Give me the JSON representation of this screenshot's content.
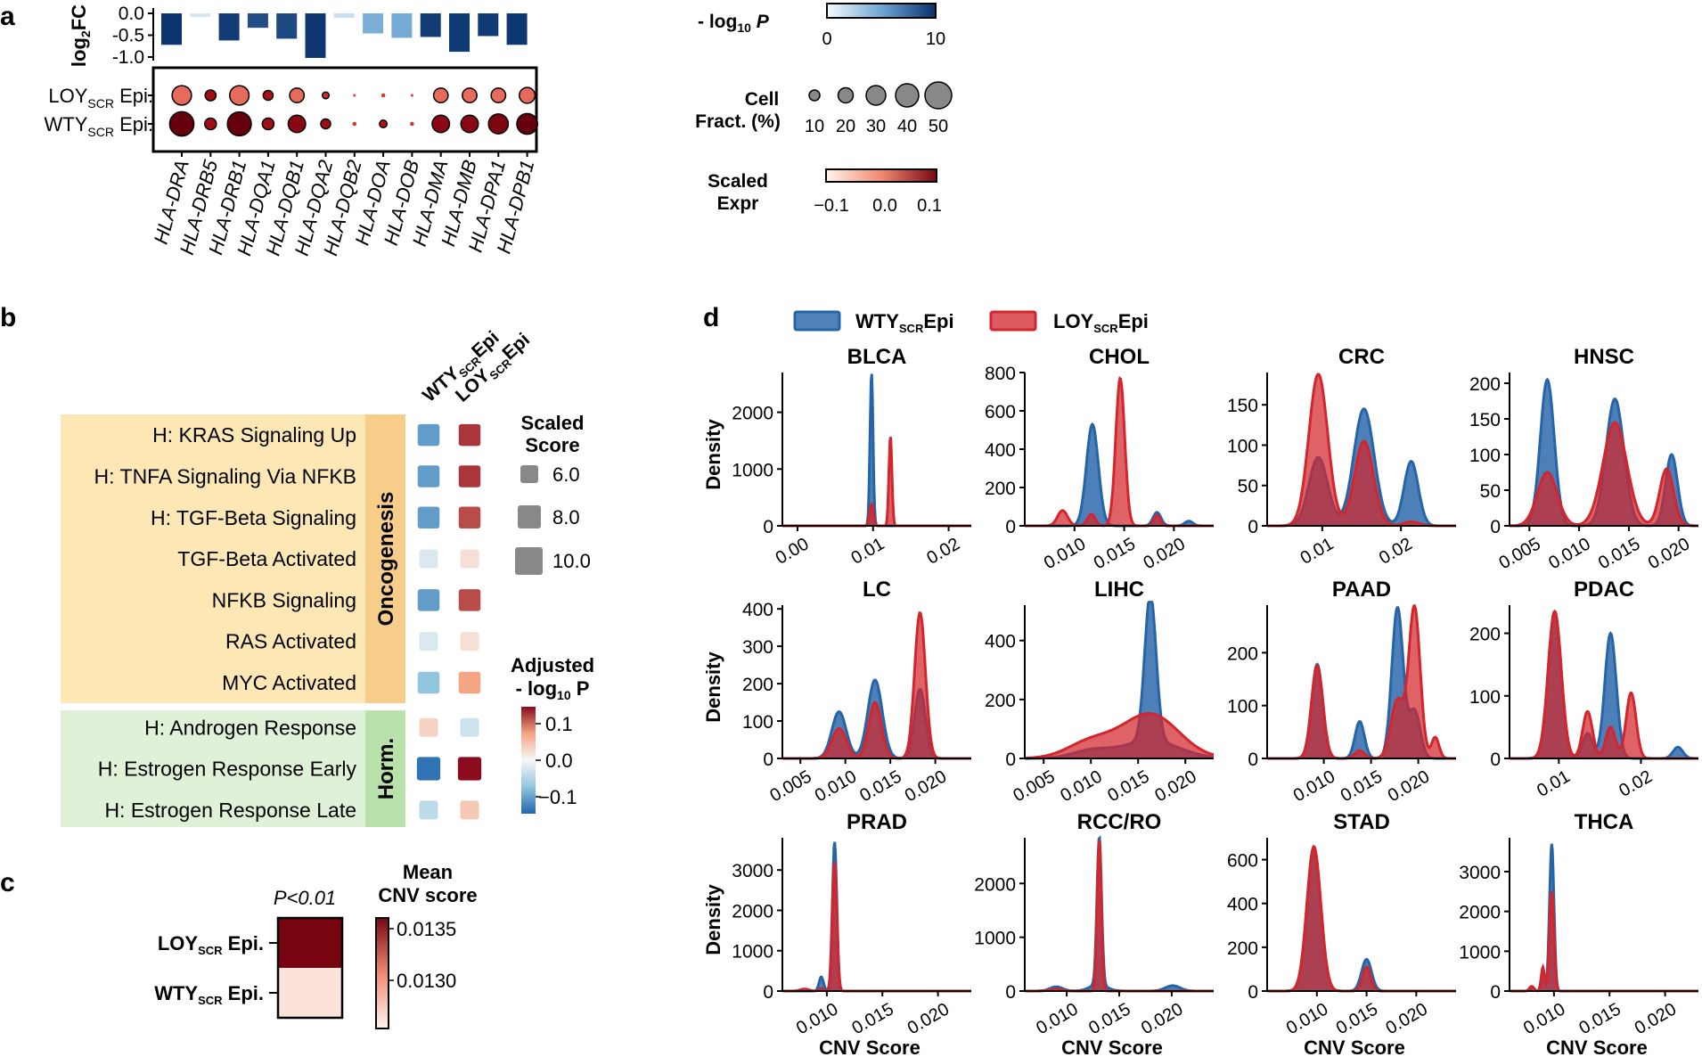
{
  "panel_labels": [
    "a",
    "b",
    "c",
    "d"
  ],
  "colors": {
    "blue": "#2664a8",
    "red": "#d2262c",
    "dark_red": "#7a0614",
    "orange_panel": "#f7cd8a",
    "orange_box": "#fde7b5",
    "green_panel": "#b9e2aa",
    "green_box": "#dff1d6",
    "gray_dot": "#888888"
  },
  "chart_data": [
    {
      "id": "a-bars",
      "type": "bar",
      "ylabel": "log2FC",
      "ylim": [
        -1.0,
        0.0
      ],
      "yticks": [
        "0.0",
        "-0.5",
        "-1.0"
      ],
      "categories": [
        "HLA-DRA",
        "HLA-DRB5",
        "HLA-DRB1",
        "HLA-DQA1",
        "HLA-DQB1",
        "HLA-DQA2",
        "HLA-DQB2",
        "HLA-DOA",
        "HLA-DOB",
        "HLA-DMA",
        "HLA-DMB",
        "HLA-DPA1",
        "HLA-DPB1"
      ],
      "values": [
        -0.72,
        -0.08,
        -0.62,
        -0.33,
        -0.58,
        -1.02,
        -0.1,
        -0.46,
        -0.56,
        -0.54,
        -0.88,
        -0.52,
        -0.72
      ],
      "neg_log10_p": [
        9.8,
        1.0,
        9.5,
        8.8,
        9.0,
        9.7,
        1.5,
        4.5,
        4.8,
        9.5,
        9.6,
        9.6,
        9.7
      ]
    },
    {
      "id": "a-dots",
      "type": "scatter",
      "rows": [
        "LOYSCR Epi.",
        "WTYSCR Epi."
      ],
      "categories": [
        "HLA-DRA",
        "HLA-DRB5",
        "HLA-DRB1",
        "HLA-DQA1",
        "HLA-DQB1",
        "HLA-DQA2",
        "HLA-DQB2",
        "HLA-DOA",
        "HLA-DOB",
        "HLA-DMA",
        "HLA-DMB",
        "HLA-DPA1",
        "HLA-DPB1"
      ],
      "cell_fraction": [
        [
          38,
          10,
          38,
          8,
          20,
          3,
          1,
          2,
          1,
          20,
          20,
          20,
          24
        ],
        [
          62,
          12,
          60,
          12,
          30,
          8,
          2,
          4,
          2,
          30,
          30,
          40,
          44
        ]
      ],
      "scaled_expr": [
        [
          -0.02,
          0.08,
          -0.02,
          0.07,
          -0.02,
          0.03,
          0.0,
          0.02,
          0.0,
          -0.02,
          -0.02,
          -0.02,
          -0.02
        ],
        [
          0.13,
          0.08,
          0.13,
          0.08,
          0.1,
          0.08,
          0.02,
          0.06,
          0.02,
          0.1,
          0.1,
          0.11,
          0.13
        ]
      ]
    },
    {
      "id": "b-heatmap",
      "type": "heatmap",
      "columns": [
        "WTYSCR Epi",
        "LOYSCR Epi"
      ],
      "rows": [
        "H: KRAS Signaling Up",
        "H: TNFA Signaling Via NFKB",
        "H: TGF-Beta Signaling",
        "TGF-Beta Activated",
        "NFKB Signaling",
        "RAS Activated",
        "MYC Activated",
        "H: Androgen Response",
        "H: Estrogen Response Early",
        "H: Estrogen Response Late"
      ],
      "groups": [
        {
          "name": "Oncogenesis",
          "start": 0,
          "end": 6
        },
        {
          "name": "Horm.",
          "start": 7,
          "end": 9
        }
      ],
      "values": [
        [
          -0.1,
          0.12
        ],
        [
          -0.1,
          0.12
        ],
        [
          -0.1,
          0.11
        ],
        [
          -0.02,
          0.02
        ],
        [
          -0.1,
          0.11
        ],
        [
          -0.02,
          0.02
        ],
        [
          -0.07,
          0.07
        ],
        [
          0.03,
          -0.03
        ],
        [
          -0.13,
          0.14
        ],
        [
          -0.04,
          0.04
        ]
      ],
      "scaled_score": [
        [
          9.0,
          9.0
        ],
        [
          9.0,
          9.0
        ],
        [
          9.0,
          9.0
        ],
        [
          8.0,
          8.0
        ],
        [
          9.0,
          9.0
        ],
        [
          8.0,
          8.0
        ],
        [
          9.0,
          9.0
        ],
        [
          8.0,
          8.0
        ],
        [
          9.5,
          9.5
        ],
        [
          8.0,
          8.0
        ]
      ]
    },
    {
      "id": "c-heatmap",
      "type": "heatmap",
      "title": "P<0.01",
      "rows": [
        "LOYSCR Epi.",
        "WTYSCR Epi."
      ],
      "values": [
        0.0136,
        0.0128
      ],
      "colorbar_label": "Mean CNV score",
      "colorbar_ticks": [
        "0.0135",
        "0.0130"
      ],
      "colorbar_range": [
        0.01275,
        0.01365
      ]
    },
    {
      "id": "d-density",
      "type": "area",
      "series_names": [
        "WTYSCREpi",
        "LOYSCREpi"
      ],
      "xlabel": "CNV Score",
      "ylabel": "Density",
      "panels": [
        {
          "title": "BLCA",
          "xlim": [
            -0.002,
            0.023
          ],
          "ylim": [
            0,
            2700
          ],
          "xticks": [
            0.0,
            0.01,
            0.02
          ],
          "xtick_labels": [
            "0.00",
            "0.01",
            "0.02"
          ],
          "yticks": [
            0,
            1000,
            2000
          ],
          "blue": [
            [
              0.0098,
              2700,
              0.0002
            ]
          ],
          "red": [
            [
              0.0098,
              380,
              0.00025
            ],
            [
              0.0123,
              1580,
              0.0002
            ]
          ]
        },
        {
          "title": "CHOL",
          "xlim": [
            0.005,
            0.024
          ],
          "ylim": [
            0,
            800
          ],
          "xticks": [
            0.01,
            0.015,
            0.02
          ],
          "xtick_labels": [
            "0.010",
            "0.015",
            "0.020"
          ],
          "yticks": [
            0,
            200,
            400,
            600,
            800
          ],
          "blue": [
            [
              0.0118,
              530,
              0.0006
            ],
            [
              0.0183,
              70,
              0.0004
            ],
            [
              0.0215,
              25,
              0.0004
            ]
          ],
          "red": [
            [
              0.0088,
              80,
              0.0005
            ],
            [
              0.0117,
              60,
              0.0004
            ],
            [
              0.0146,
              770,
              0.00045
            ],
            [
              0.0183,
              55,
              0.0003
            ]
          ]
        },
        {
          "title": "CRC",
          "xlim": [
            0.003,
            0.027
          ],
          "ylim": [
            0,
            190
          ],
          "xticks": [
            0.01,
            0.02
          ],
          "xtick_labels": [
            "0.01",
            "0.02"
          ],
          "yticks": [
            0,
            50,
            100,
            150
          ],
          "blue": [
            [
              0.0095,
              85,
              0.0012
            ],
            [
              0.0153,
              145,
              0.0013
            ],
            [
              0.0213,
              80,
              0.0009
            ]
          ],
          "red": [
            [
              0.0095,
              188,
              0.0012
            ],
            [
              0.0153,
              105,
              0.0012
            ],
            [
              0.0213,
              5,
              0.001
            ]
          ]
        },
        {
          "title": "HNSC",
          "xlim": [
            0.003,
            0.022
          ],
          "ylim": [
            0,
            215
          ],
          "xticks": [
            0.005,
            0.01,
            0.015,
            0.02
          ],
          "xtick_labels": [
            "0.005",
            "0.010",
            "0.015",
            "0.020"
          ],
          "yticks": [
            0,
            50,
            100,
            150,
            200
          ],
          "blue": [
            [
              0.0068,
              205,
              0.0007
            ],
            [
              0.0136,
              178,
              0.0009
            ],
            [
              0.0193,
              100,
              0.0006
            ]
          ],
          "red": [
            [
              0.0068,
              75,
              0.001
            ],
            [
              0.0136,
              145,
              0.0012
            ],
            [
              0.0188,
              80,
              0.0007
            ]
          ]
        },
        {
          "title": "LC",
          "xlim": [
            0.003,
            0.024
          ],
          "ylim": [
            0,
            410
          ],
          "xticks": [
            0.005,
            0.01,
            0.015,
            0.02
          ],
          "xtick_labels": [
            "0.005",
            "0.010",
            "0.015",
            "0.020"
          ],
          "yticks": [
            0,
            100,
            200,
            300,
            400
          ],
          "blue": [
            [
              0.0093,
              125,
              0.0008
            ],
            [
              0.0133,
              210,
              0.0008
            ],
            [
              0.0183,
              185,
              0.0006
            ]
          ],
          "red": [
            [
              0.0093,
              80,
              0.0008
            ],
            [
              0.0133,
              150,
              0.0007
            ],
            [
              0.0183,
              390,
              0.0006
            ]
          ]
        },
        {
          "title": "LIHC",
          "xlim": [
            0.003,
            0.023
          ],
          "ylim": [
            0,
            520
          ],
          "xticks": [
            0.005,
            0.01,
            0.015,
            0.02
          ],
          "xtick_labels": [
            "0.005",
            "0.010",
            "0.015",
            "0.020"
          ],
          "yticks": [
            0,
            200,
            400
          ],
          "blue": [
            [
              0.0163,
              500,
              0.0006
            ],
            [
              0.0163,
              60,
              0.003
            ],
            [
              0.01,
              25,
              0.002
            ]
          ],
          "red": [
            [
              0.0163,
              150,
              0.003
            ],
            [
              0.01,
              55,
              0.0025
            ]
          ]
        },
        {
          "title": "PAAD",
          "xlim": [
            0.004,
            0.024
          ],
          "ylim": [
            0,
            290
          ],
          "xticks": [
            0.01,
            0.015,
            0.02
          ],
          "xtick_labels": [
            "0.010",
            "0.015",
            "0.020"
          ],
          "yticks": [
            0,
            100,
            200
          ],
          "blue": [
            [
              0.0093,
              178,
              0.0006
            ],
            [
              0.0138,
              70,
              0.0005
            ],
            [
              0.0178,
              285,
              0.0006
            ],
            [
              0.0196,
              90,
              0.0006
            ]
          ],
          "red": [
            [
              0.0093,
              175,
              0.0006
            ],
            [
              0.0138,
              15,
              0.0005
            ],
            [
              0.0178,
              110,
              0.0007
            ],
            [
              0.0196,
              285,
              0.0006
            ],
            [
              0.0218,
              40,
              0.0004
            ]
          ]
        },
        {
          "title": "PDAC",
          "xlim": [
            0.004,
            0.027
          ],
          "ylim": [
            0,
            245
          ],
          "xticks": [
            0.01,
            0.02
          ],
          "xtick_labels": [
            "0.01",
            "0.02"
          ],
          "yticks": [
            0,
            100,
            200
          ],
          "blue": [
            [
              0.0095,
              235,
              0.0008
            ],
            [
              0.0135,
              40,
              0.0006
            ],
            [
              0.0163,
              200,
              0.0007
            ],
            [
              0.0245,
              18,
              0.0006
            ]
          ],
          "red": [
            [
              0.0095,
              235,
              0.0008
            ],
            [
              0.0135,
              75,
              0.0006
            ],
            [
              0.0163,
              50,
              0.0006
            ],
            [
              0.0188,
              105,
              0.0006
            ]
          ]
        },
        {
          "title": "PRAD",
          "xlim": [
            0.006,
            0.023
          ],
          "ylim": [
            0,
            3800
          ],
          "xticks": [
            0.01,
            0.015,
            0.02
          ],
          "xtick_labels": [
            "0.010",
            "0.015",
            "0.020"
          ],
          "yticks": [
            0,
            1000,
            2000,
            3000
          ],
          "blue": [
            [
              0.0095,
              350,
              0.0002
            ],
            [
              0.0107,
              3700,
              0.0002
            ]
          ],
          "red": [
            [
              0.0095,
              60,
              0.0002
            ],
            [
              0.0107,
              3200,
              0.0002
            ],
            [
              0.008,
              50,
              0.0004
            ]
          ]
        },
        {
          "title": "RCC/RO",
          "xlim": [
            0.006,
            0.024
          ],
          "ylim": [
            0,
            2850
          ],
          "xticks": [
            0.01,
            0.015,
            0.02
          ],
          "xtick_labels": [
            "0.010",
            "0.015",
            "0.020"
          ],
          "yticks": [
            0,
            1000,
            2000
          ],
          "blue": [
            [
              0.0131,
              2750,
              0.00022
            ],
            [
              0.009,
              80,
              0.0006
            ],
            [
              0.0201,
              100,
              0.0007
            ],
            [
              0.013,
              120,
              0.0008
            ]
          ],
          "red": [
            [
              0.0131,
              2800,
              0.0002
            ],
            [
              0.009,
              40,
              0.0006
            ]
          ]
        },
        {
          "title": "STAD",
          "xlim": [
            0.005,
            0.024
          ],
          "ylim": [
            0,
            700
          ],
          "xticks": [
            0.01,
            0.015,
            0.02
          ],
          "xtick_labels": [
            "0.010",
            "0.015",
            "0.020"
          ],
          "yticks": [
            0,
            200,
            400,
            600
          ],
          "blue": [
            [
              0.0097,
              650,
              0.0007
            ],
            [
              0.015,
              145,
              0.0005
            ]
          ],
          "red": [
            [
              0.0097,
              660,
              0.0007
            ],
            [
              0.015,
              110,
              0.0004
            ]
          ]
        },
        {
          "title": "THCA",
          "xlim": [
            0.006,
            0.023
          ],
          "ylim": [
            0,
            3850
          ],
          "xticks": [
            0.01,
            0.015,
            0.02
          ],
          "xtick_labels": [
            "0.010",
            "0.015",
            "0.020"
          ],
          "yticks": [
            0,
            1000,
            2000,
            3000
          ],
          "blue": [
            [
              0.0098,
              3700,
              0.0002
            ],
            [
              0.009,
              500,
              0.00015
            ],
            [
              0.008,
              100,
              0.0002
            ]
          ],
          "red": [
            [
              0.0098,
              2500,
              0.0002
            ],
            [
              0.009,
              600,
              0.00015
            ],
            [
              0.008,
              120,
              0.0002
            ]
          ]
        }
      ]
    }
  ],
  "legend_a": {
    "pval_title_pre": "- log",
    "pval_title_sub": "10",
    "pval_title_post": " P",
    "pval_ticks": [
      "0",
      "10"
    ],
    "cellfrac_title_1": "Cell",
    "cellfrac_title_2": "Fract. (%)",
    "cellfrac_ticks": [
      "10",
      "20",
      "30",
      "40",
      "50"
    ],
    "expr_title_1": "Scaled",
    "expr_title_2": "Expr",
    "expr_ticks": [
      "−0.1",
      "0.0",
      "0.1"
    ],
    "ylabel_pre": "log",
    "ylabel_sub": "2",
    "ylabel_post": "FC",
    "row_labels": [
      {
        "pre": "LOY",
        "sub": "SCR",
        "post": " Epi."
      },
      {
        "pre": "WTY",
        "sub": "SCR",
        "post": " Epi."
      }
    ]
  },
  "legend_b": {
    "col_labels": [
      {
        "pre": "WTY",
        "sub": "SCR",
        "post": "Epi"
      },
      {
        "pre": "LOY",
        "sub": "SCR",
        "post": "Epi"
      }
    ],
    "score_title_1": "Scaled",
    "score_title_2": "Score",
    "score_ticks": [
      "6.0",
      "8.0",
      "10.0"
    ],
    "p_title_1": "Adjusted",
    "p_title_2_pre": "- log",
    "p_title_2_sub": "10",
    "p_title_2_post": " P",
    "p_ticks": [
      "0.1",
      "0.0",
      "−0.1"
    ]
  },
  "legend_c": {
    "row_labels": [
      {
        "pre": "LOY",
        "sub": "SCR",
        "post": " Epi."
      },
      {
        "pre": "WTY",
        "sub": "SCR",
        "post": " Epi."
      }
    ],
    "cb_title_1": "Mean",
    "cb_title_2": "CNV score"
  },
  "legend_d": [
    {
      "pre": "WTY",
      "sub": "SCR",
      "post": "Epi"
    },
    {
      "pre": "LOY",
      "sub": "SCR",
      "post": "Epi"
    }
  ]
}
